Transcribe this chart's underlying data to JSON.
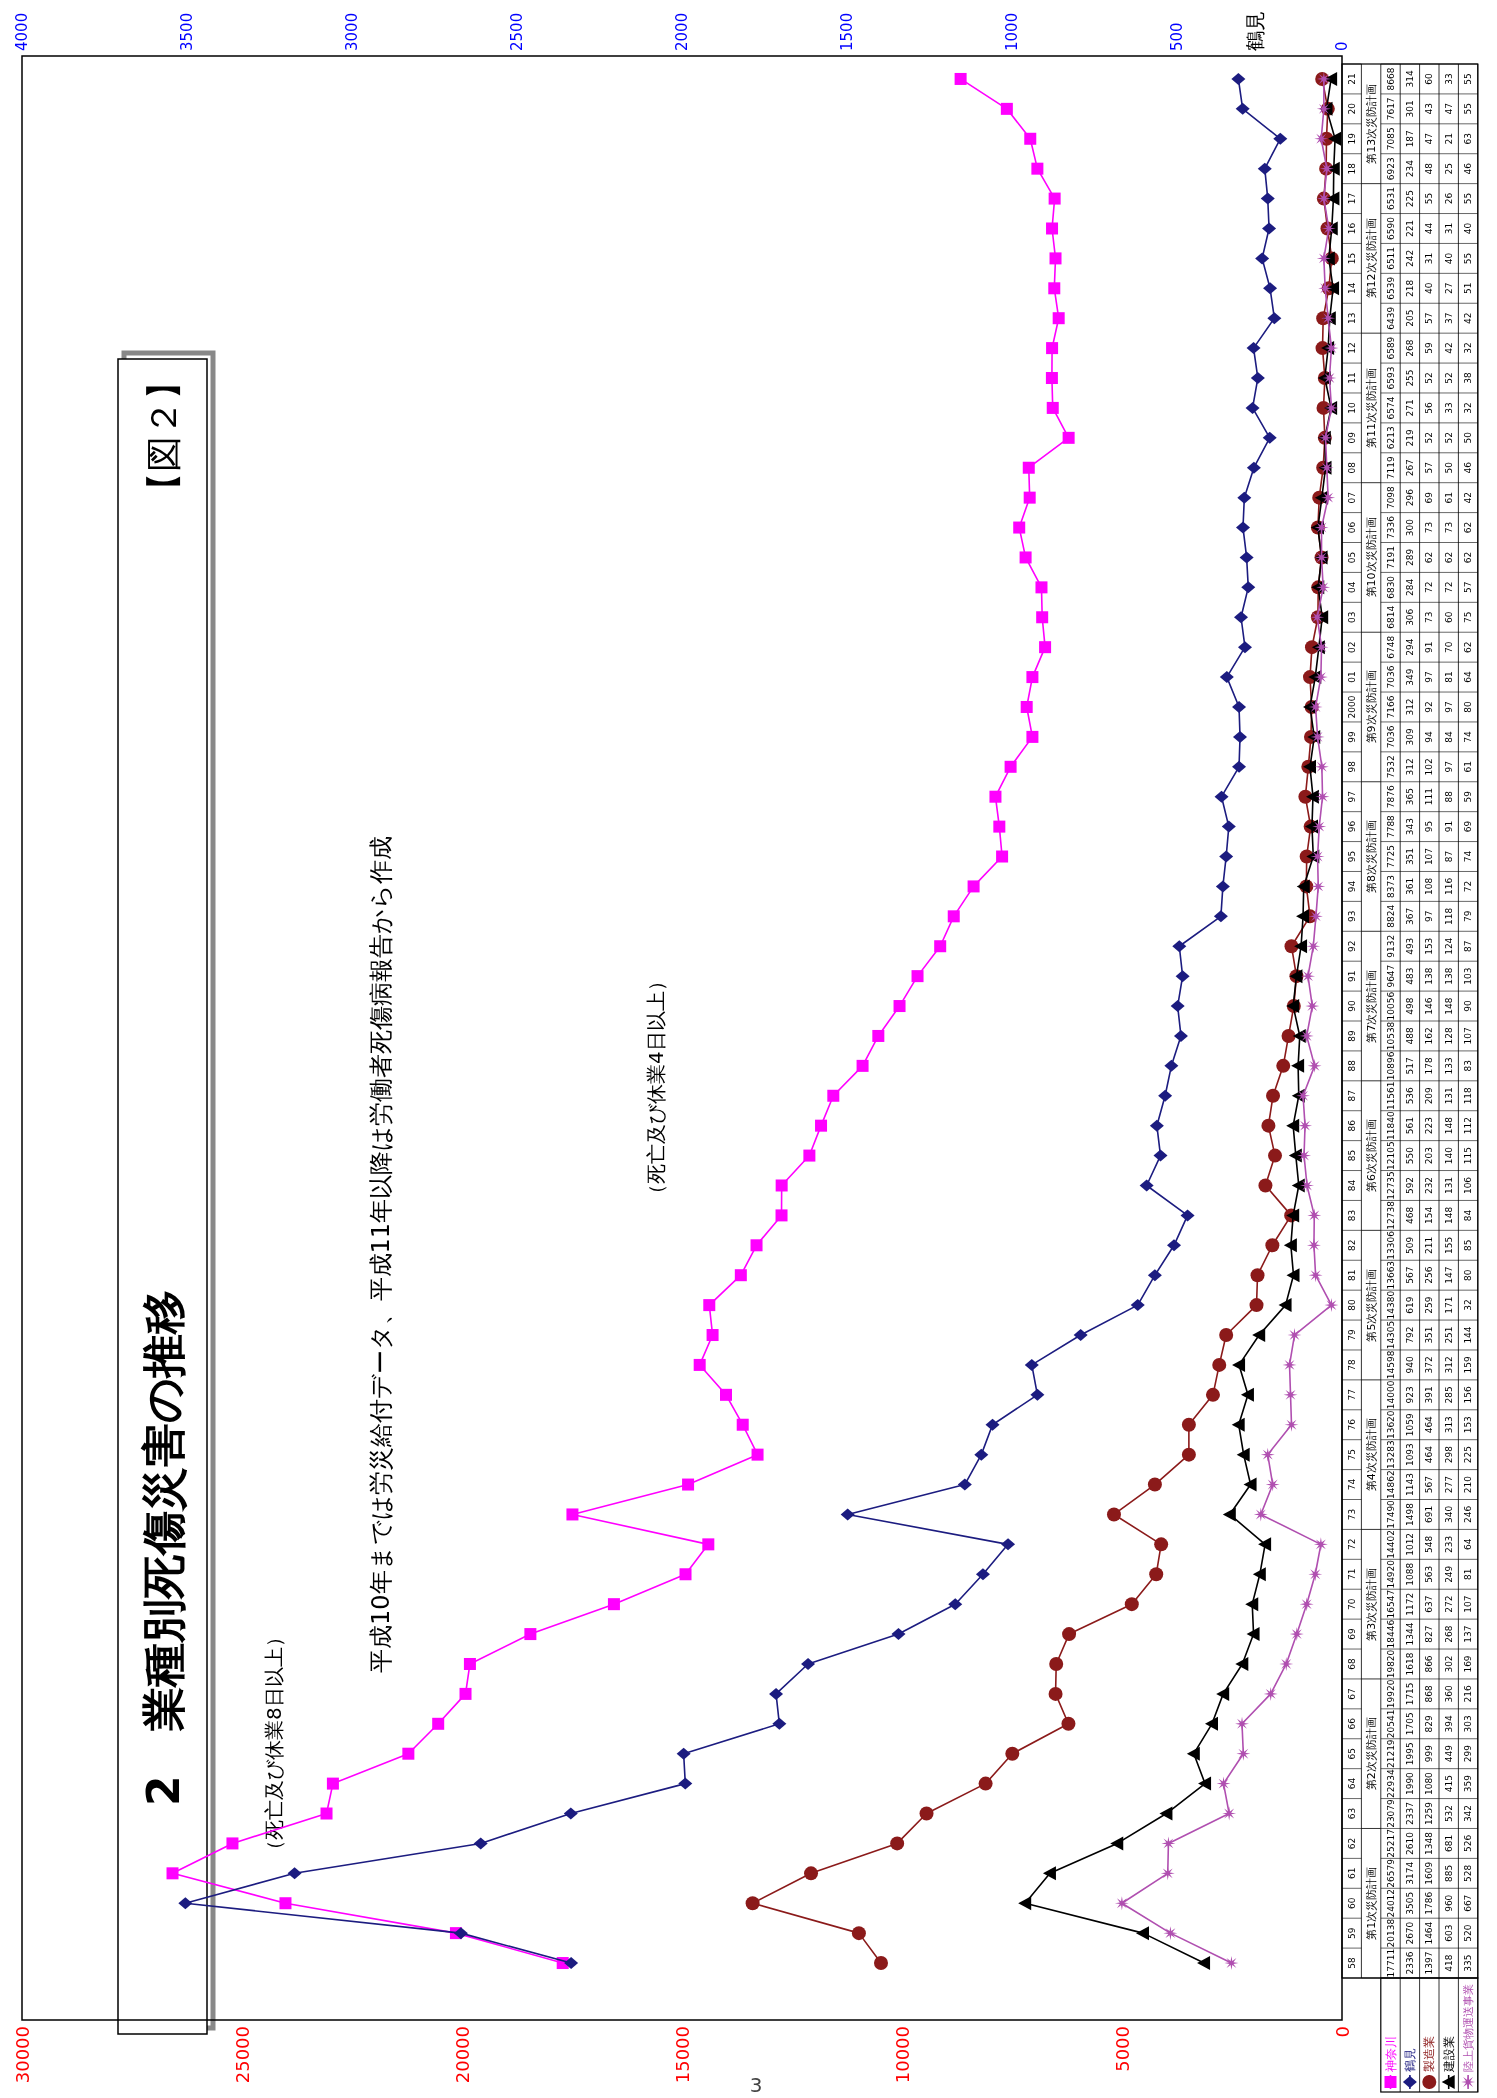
{
  "chart_data": {
    "type": "line",
    "orientation": "horizontal",
    "title": "2　業種別死傷災害の推移",
    "subtitle": "平成10年までは労災給付データ、平成11年以降は労働者死傷病報告から作成",
    "x2label": "鶴見",
    "categories": [
      "21",
      "20",
      "19",
      "18",
      "17",
      "16",
      "15",
      "14",
      "13",
      "12",
      "11",
      "10",
      "09",
      "08",
      "07",
      "06",
      "05",
      "04",
      "03",
      "02",
      "01",
      "2000",
      "99",
      "98",
      "97",
      "96",
      "95",
      "94",
      "93",
      "92",
      "91",
      "90",
      "89",
      "88",
      "87",
      "86",
      "85",
      "84",
      "83",
      "82",
      "81",
      "80",
      "79",
      "78",
      "77",
      "76",
      "75",
      "74",
      "73",
      "72",
      "71",
      "70",
      "69",
      "68",
      "67",
      "66",
      "65",
      "64",
      "63",
      "62",
      "61",
      "60",
      "59",
      "58"
    ],
    "xlim": [
      30000,
      0
    ],
    "xticks": [
      30000,
      25000,
      20000,
      15000,
      10000,
      5000,
      0
    ],
    "x2lim": [
      4000,
      0
    ],
    "x2ticks": [
      4000,
      3500,
      3000,
      2500,
      2000,
      1500,
      1000,
      500,
      0
    ],
    "data_labels": true,
    "legend": "bottom right",
    "line_style": "solid",
    "series": [
      {
        "name": "神奈川",
        "color": "#ff00ff",
        "marker": "square",
        "values": [
          8668,
          7617,
          7085,
          6923,
          6531,
          6590,
          6511,
          6539,
          6439,
          6589,
          6593,
          6574,
          6213,
          7119,
          7098,
          7336,
          7191,
          6830,
          6814,
          6748,
          7036,
          7166,
          7036,
          7532,
          7876,
          7788,
          7725,
          8373,
          8824,
          9132,
          9647,
          10056,
          10538,
          10896,
          11561,
          11840,
          12105,
          12735,
          12738,
          13306,
          13663,
          14380,
          14305,
          14598,
          14000,
          13620,
          13283,
          14862,
          17490,
          14402,
          14920,
          16547,
          18446,
          19820,
          19920,
          20541,
          21219,
          22934,
          23079,
          25217,
          26579,
          24012,
          20138,
          17711
        ]
      },
      {
        "name": "鶴見",
        "color": "#1c1c80",
        "marker": "diamond",
        "axis": "x2",
        "values": [
          314,
          301,
          187,
          234,
          225,
          221,
          242,
          218,
          205,
          268,
          255,
          271,
          219,
          267,
          296,
          300,
          289,
          284,
          306,
          294,
          349,
          312,
          309,
          312,
          365,
          343,
          351,
          361,
          367,
          493,
          483,
          498,
          488,
          517,
          536,
          561,
          550,
          592,
          468,
          509,
          567,
          619,
          792,
          940,
          923,
          1059,
          1093,
          1143,
          1498,
          1012,
          1088,
          1172,
          1344,
          1618,
          1715,
          1705,
          1995,
          1990,
          2337,
          2610,
          3174,
          3505,
          2670,
          2336
        ]
      },
      {
        "name": "製造業",
        "color": "#8b1a1a",
        "marker": "circle",
        "axis": "x2",
        "values": [
          60,
          43,
          47,
          48,
          55,
          44,
          31,
          40,
          57,
          59,
          52,
          56,
          52,
          57,
          69,
          73,
          62,
          72,
          73,
          91,
          97,
          92,
          94,
          102,
          111,
          95,
          107,
          108,
          97,
          153,
          138,
          146,
          162,
          178,
          209,
          223,
          203,
          232,
          154,
          211,
          256,
          259,
          351,
          372,
          391,
          464,
          464,
          567,
          691,
          548,
          563,
          637,
          827,
          866,
          868,
          829,
          999,
          1080,
          1259,
          1348,
          1609,
          1786,
          1464,
          1397
        ]
      },
      {
        "name": "建設業",
        "color": "#000000",
        "marker": "triangle",
        "axis": "x2",
        "values": [
          33,
          47,
          21,
          25,
          26,
          31,
          40,
          27,
          37,
          42,
          52,
          33,
          52,
          50,
          61,
          73,
          62,
          72,
          60,
          70,
          81,
          97,
          84,
          97,
          88,
          91,
          87,
          116,
          118,
          124,
          138,
          148,
          128,
          133,
          131,
          148,
          140,
          131,
          148,
          155,
          147,
          171,
          251,
          312,
          285,
          313,
          298,
          277,
          340,
          233,
          249,
          272,
          268,
          302,
          360,
          394,
          449,
          415,
          532,
          681,
          885,
          960,
          603,
          418
        ]
      },
      {
        "name": "陸上貨物運送事業",
        "color": "#b04fb0",
        "marker": "star",
        "axis": "x2",
        "values": [
          55,
          55,
          63,
          46,
          55,
          40,
          55,
          51,
          42,
          32,
          38,
          32,
          50,
          46,
          42,
          62,
          62,
          57,
          75,
          62,
          64,
          80,
          74,
          61,
          59,
          69,
          74,
          72,
          79,
          87,
          103,
          90,
          107,
          83,
          118,
          112,
          115,
          106,
          84,
          85,
          80,
          32,
          144,
          159,
          156,
          153,
          225,
          210,
          246,
          64,
          81,
          107,
          137,
          169,
          216,
          303,
          299,
          359,
          342,
          526,
          528,
          667,
          520,
          335
        ]
      }
    ],
    "annotations": [
      "【図２】",
      "（死亡及び休業8日以上）",
      "（死亡及び休業4日以上）",
      "3",
      "第13次災防計画",
      "第12次災防計画",
      "第11次災防計画",
      "第10次災防計画",
      "第9次災防計画",
      "第8次災防計画",
      "第7次災防計画",
      "第6次災防計画",
      "第5次災防計画",
      "第4次災防計画",
      "第3次災防計画",
      "第2次災防計画",
      "第1次災防計画"
    ]
  }
}
